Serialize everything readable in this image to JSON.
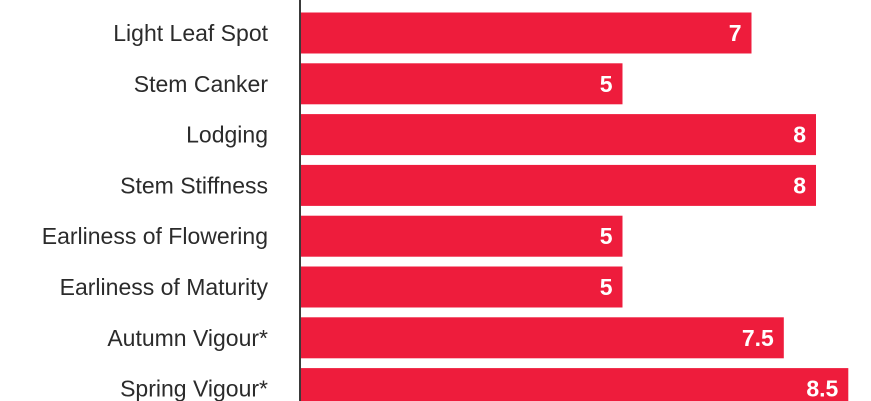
{
  "chart_data": {
    "type": "bar",
    "orientation": "horizontal",
    "categories": [
      "Light Leaf Spot",
      "Stem Canker",
      "Lodging",
      "Stem Stiffness",
      "Earliness of Flowering",
      "Earliness of Maturity",
      "Autumn Vigour*",
      "Spring Vigour*"
    ],
    "values": [
      7,
      5,
      8,
      8,
      5,
      5,
      7.5,
      8.5
    ],
    "value_labels": [
      "7",
      "5",
      "8",
      "8",
      "5",
      "5",
      "7.5",
      "8.5"
    ],
    "title": "",
    "xlabel": "",
    "ylabel": "",
    "xlim": [
      0,
      8.5
    ],
    "grid": false,
    "bar_color": "#ee1c3c",
    "label_color": "#2b2b2b",
    "value_label_color": "#ffffff",
    "axis_color": "#3a3a3a"
  }
}
